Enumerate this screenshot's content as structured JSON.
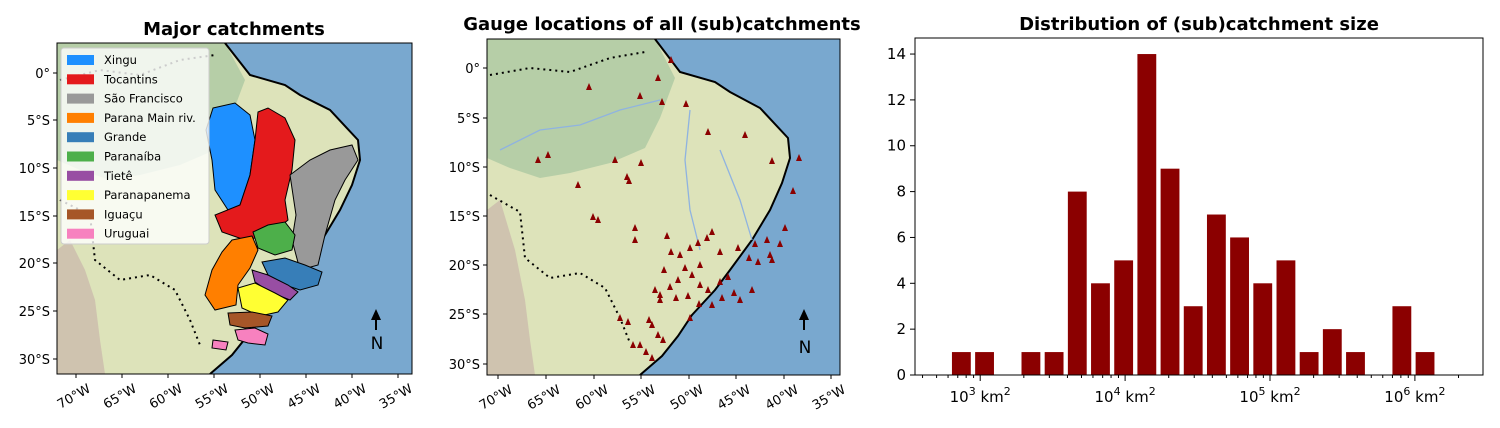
{
  "panels": {
    "left_title": "Major catchments",
    "mid_title": "Gauge locations of all (sub)catchments",
    "right_title": "Distribution of (sub)catchment size",
    "north_label": "N"
  },
  "map_axes": {
    "lat_labels": [
      "0°",
      "5°S",
      "10°S",
      "15°S",
      "20°S",
      "25°S",
      "30°S"
    ],
    "lon_labels": [
      "70°W",
      "65°W",
      "60°W",
      "55°W",
      "50°W",
      "45°W",
      "40°W",
      "35°W"
    ]
  },
  "legend": [
    {
      "label": "Xingu",
      "color": "#1e90ff"
    },
    {
      "label": "Tocantins",
      "color": "#e41a1c"
    },
    {
      "label": "São Francisco",
      "color": "#999999"
    },
    {
      "label": "Parana Main riv.",
      "color": "#ff7f00"
    },
    {
      "label": "Grande",
      "color": "#377eb8"
    },
    {
      "label": "Paranaíba",
      "color": "#4daf4a"
    },
    {
      "label": "Tietê",
      "color": "#984ea3"
    },
    {
      "label": "Paranapanema",
      "color": "#ffff33"
    },
    {
      "label": "Iguaçu",
      "color": "#a65628"
    },
    {
      "label": "Uruguai",
      "color": "#f781bf"
    }
  ],
  "colors": {
    "ocean": "#79a8cf",
    "land": "#dde3ba",
    "forest": "#a8c7a0",
    "andes": "#cdbfae",
    "river": "#8fb3e0",
    "gauge": "#8b0000",
    "bar": "#8b0000"
  },
  "chart_data": {
    "type": "bar",
    "title": "Distribution of (sub)catchment size",
    "x_scale": "log",
    "x_unit": "km²",
    "x_ticks": [
      "10^3 km^2",
      "10^4 km^2",
      "10^5 km^2",
      "10^6 km^2"
    ],
    "xlim_log10": [
      2.55,
      6.47
    ],
    "ylim": [
      0,
      14.7
    ],
    "y_ticks": [
      0,
      2,
      4,
      6,
      8,
      10,
      12,
      14
    ],
    "bin_centers_log10": [
      2.87,
      3.03,
      3.35,
      3.51,
      3.67,
      3.83,
      3.99,
      4.15,
      4.31,
      4.47,
      4.63,
      4.79,
      4.95,
      5.11,
      5.27,
      5.43,
      5.59,
      5.91,
      6.07
    ],
    "values": [
      1,
      1,
      1,
      1,
      8,
      4,
      5,
      14,
      9,
      3,
      7,
      6,
      4,
      5,
      1,
      2,
      1,
      3,
      1
    ]
  }
}
